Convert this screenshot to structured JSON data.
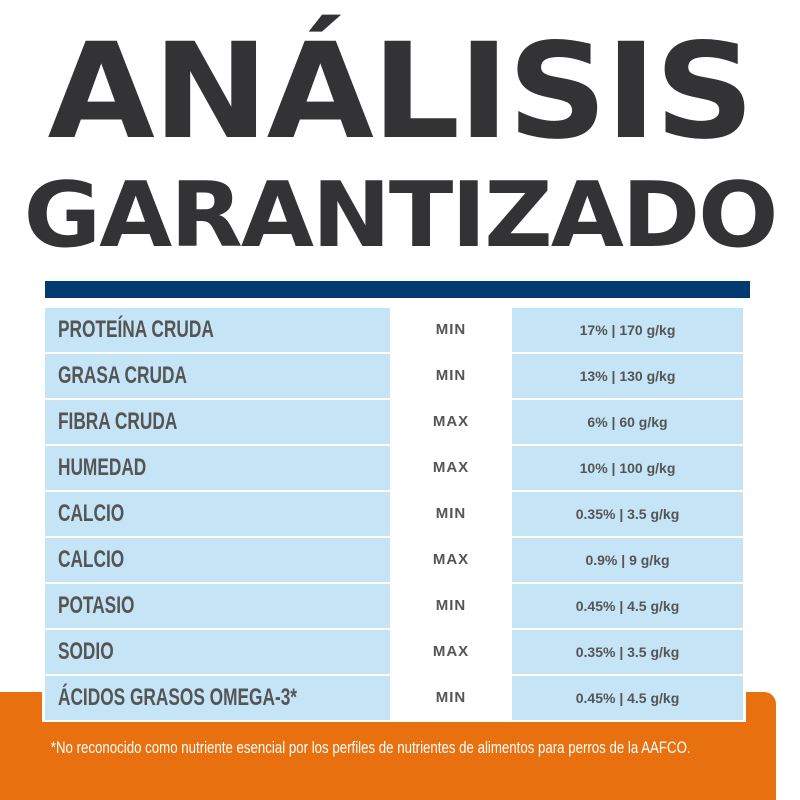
{
  "colors": {
    "title": "#333335",
    "bar": "#003a70",
    "cell": "#c5e4f5",
    "orange": "#e8700f"
  },
  "title": {
    "line1": "ANÁLISIS",
    "line2": "GARANTIZADO"
  },
  "rows": [
    {
      "nutrient": "PROTEÍNA CRUDA",
      "type": "MIN",
      "value": "17% | 170 g/kg"
    },
    {
      "nutrient": "GRASA CRUDA",
      "type": "MIN",
      "value": "13% | 130 g/kg"
    },
    {
      "nutrient": "FIBRA CRUDA",
      "type": "MAX",
      "value": "6% | 60 g/kg"
    },
    {
      "nutrient": "HUMEDAD",
      "type": "MAX",
      "value": "10% | 100 g/kg"
    },
    {
      "nutrient": "CALCIO",
      "type": "MIN",
      "value": "0.35% | 3.5 g/kg"
    },
    {
      "nutrient": "CALCIO",
      "type": "MAX",
      "value": "0.9% | 9 g/kg"
    },
    {
      "nutrient": "POTASIO",
      "type": "MIN",
      "value": "0.45% | 4.5 g/kg"
    },
    {
      "nutrient": "SODIO",
      "type": "MAX",
      "value": "0.35% | 3.5 g/kg"
    },
    {
      "nutrient": "ÁCIDOS GRASOS OMEGA-3*",
      "type": "MIN",
      "value": "0.45% | 4.5 g/kg"
    }
  ],
  "footnote": "*No reconocido como nutriente esencial por los perfiles de nutrientes de alimentos para perros de la AAFCO."
}
